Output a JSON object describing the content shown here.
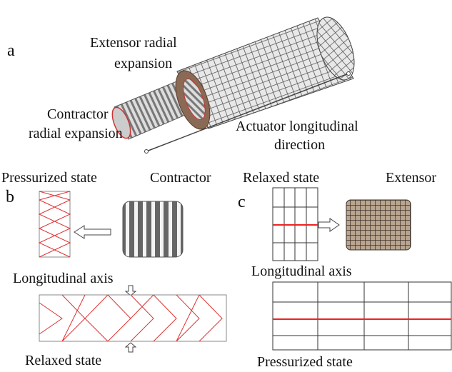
{
  "panel_a": {
    "label": "a",
    "extensor_lines": [
      "Extensor radial",
      "expansion"
    ],
    "contractor_lines": [
      "Contractor",
      "radial expansion"
    ],
    "direction_lines": [
      "Actuator longitudinal",
      "direction"
    ]
  },
  "panel_b": {
    "label": "b",
    "top_left": "Pressurized state",
    "top_right": "Contractor",
    "axis": "Longitudinal axis",
    "bottom": "Relaxed state"
  },
  "panel_c": {
    "label": "c",
    "top_left": "Relaxed state",
    "top_right": "Extensor",
    "axis": "Longitudinal axis",
    "bottom": "Pressurized state"
  }
}
